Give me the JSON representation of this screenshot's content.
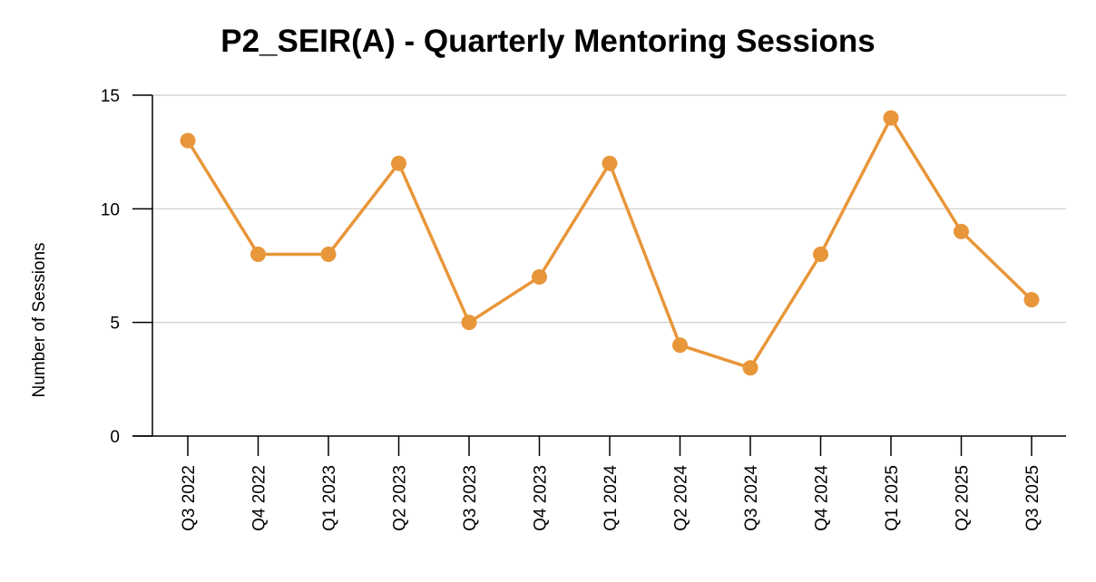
{
  "chart_data": {
    "type": "line",
    "title": "P2_SEIR(A) - Quarterly Mentoring Sessions",
    "xlabel": "",
    "ylabel": "Number of Sessions",
    "categories": [
      "Q3 2022",
      "Q4 2022",
      "Q1 2023",
      "Q2 2023",
      "Q3 2023",
      "Q4 2023",
      "Q1 2024",
      "Q2 2024",
      "Q3 2024",
      "Q4 2024",
      "Q1 2025",
      "Q2 2025",
      "Q3 2025"
    ],
    "series": [
      {
        "values": [
          13,
          8,
          8,
          12,
          5,
          7,
          12,
          4,
          3,
          8,
          14,
          9,
          6
        ],
        "color": "#E8963A"
      }
    ],
    "ylim": [
      0,
      15
    ],
    "yticks": [
      0,
      5,
      10,
      15
    ],
    "grid": "horizontal",
    "grid_color": "#cccccc",
    "legend": "none"
  }
}
